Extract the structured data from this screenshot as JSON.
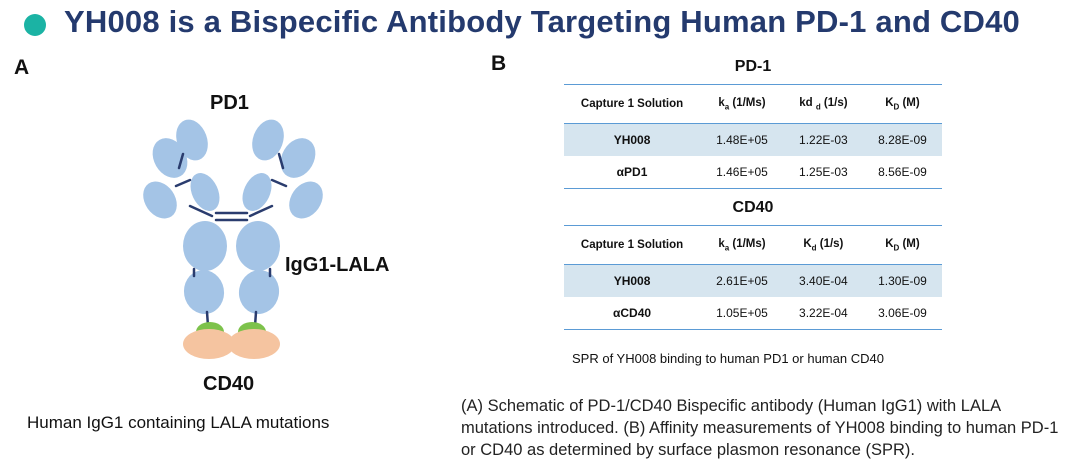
{
  "header": {
    "title": "YH008 is a Bispecific Antibody Targeting Human PD-1 and CD40"
  },
  "panel_a": {
    "label": "A",
    "pd1_label": "PD1",
    "igg_label": "IgG1-LALA",
    "cd40_label": "CD40",
    "caption": "Human IgG1 containing LALA mutations",
    "colors": {
      "domain": "#a4c4e6",
      "linker": "#2a3c6e",
      "green": "#7dc24b",
      "peach": "#f5c4a0"
    }
  },
  "panel_b": {
    "label": "B",
    "tables": [
      {
        "title": "PD-1",
        "headers": {
          "col1": "Capture 1 Solution",
          "col2_main": "k",
          "col2_sub": "a",
          "col2_tail": " (1/Ms)",
          "col3_main": "kd ",
          "col3_sub": "d",
          "col3_tail": " (1/s)",
          "col4_main": "K",
          "col4_sub": "D",
          "col4_tail": " (M)"
        },
        "rows": [
          {
            "solution": "YH008",
            "ka": "1.48E+05",
            "kd": "1.22E-03",
            "KD": "8.28E-09"
          },
          {
            "solution": "αPD1",
            "ka": "1.46E+05",
            "kd": "1.25E-03",
            "KD": "8.56E-09"
          }
        ]
      },
      {
        "title": "CD40",
        "headers": {
          "col1": "Capture 1 Solution",
          "col2_main": "k",
          "col2_sub": "a",
          "col2_tail": " (1/Ms)",
          "col3_main": "K",
          "col3_sub": "d",
          "col3_tail": " (1/s)",
          "col4_main": "K",
          "col4_sub": "D",
          "col4_tail": " (M)"
        },
        "rows": [
          {
            "solution": "YH008",
            "ka": "2.61E+05",
            "kd": "3.40E-04",
            "KD": "1.30E-09"
          },
          {
            "solution": "αCD40",
            "ka": "1.05E+05",
            "kd": "3.22E-04",
            "KD": "3.06E-09"
          }
        ]
      }
    ],
    "spr_caption": "SPR of YH008 binding to human PD1 or human CD40"
  },
  "figure_caption": "(A) Schematic of PD-1/CD40 Bispecific antibody (Human IgG1) with LALA mutations introduced. (B) Affinity measurements of YH008 binding to human PD-1 or CD40 as determined by surface plasmon resonance (SPR).",
  "theme": {
    "title_color": "#243a6e",
    "dot_color": "#1bb3a4",
    "table_rule": "#5b9bd5",
    "row_shade": "#d6e5ef"
  }
}
